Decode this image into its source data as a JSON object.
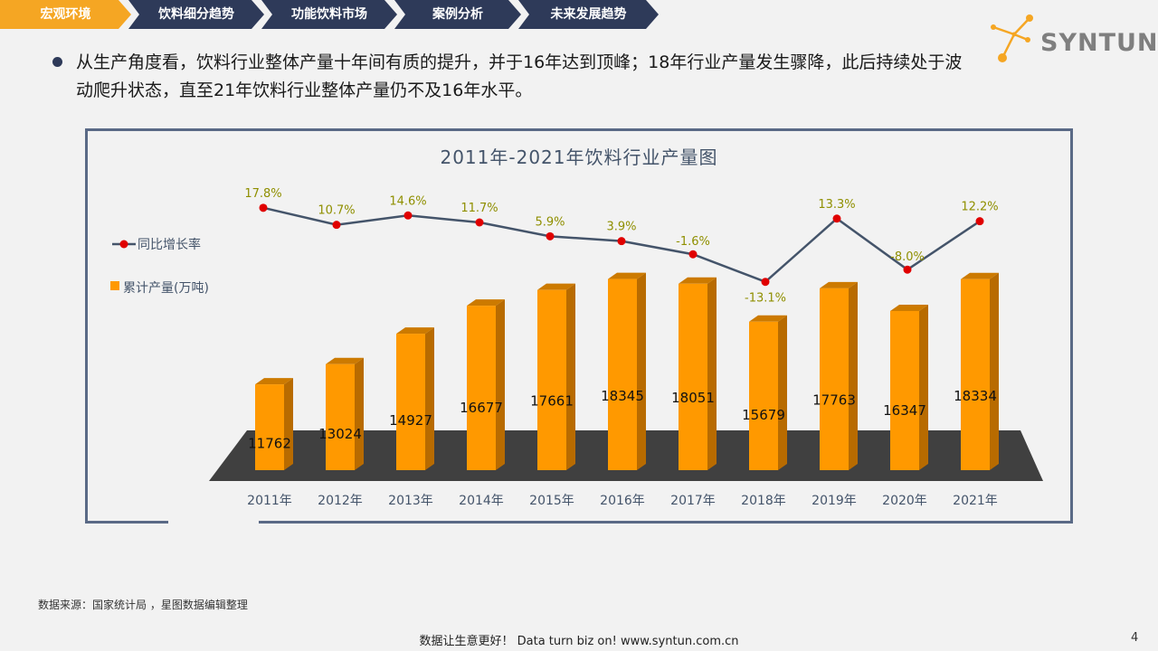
{
  "nav": {
    "items": [
      {
        "label": "宏观环境",
        "active": true
      },
      {
        "label": "饮料细分趋势",
        "active": false
      },
      {
        "label": "功能饮料市场",
        "active": false
      },
      {
        "label": "案例分析",
        "active": false
      },
      {
        "label": "未来发展趋势",
        "active": false
      }
    ],
    "active_color": "#f5a623",
    "inactive_color": "#2e3a59"
  },
  "logo": {
    "text": "SYNTUN",
    "icon": "molecule-logo-icon"
  },
  "paragraph": "从生产角度看，饮料行业整体产量十年间有质的提升，并于16年达到顶峰；18年行业产量发生骤降，此后持续处于波动爬升状态，直至21年饮料行业整体产量仍不及16年水平。",
  "chart_data": {
    "type": "bar",
    "title": "2011年-2021年饮料行业产量图",
    "categories": [
      "2011年",
      "2012年",
      "2013年",
      "2014年",
      "2015年",
      "2016年",
      "2017年",
      "2018年",
      "2019年",
      "2020年",
      "2021年"
    ],
    "series": [
      {
        "name": "累计产量(万吨)",
        "type": "bar",
        "values": [
          11762,
          13024,
          14927,
          16677,
          17661,
          18345,
          18051,
          15679,
          17763,
          16347,
          18334
        ],
        "color": "#ff9900"
      },
      {
        "name": "同比增长率",
        "type": "line",
        "values": [
          17.8,
          10.7,
          14.6,
          11.7,
          5.9,
          3.9,
          -1.6,
          -13.1,
          13.3,
          -8.0,
          12.2
        ],
        "labels": [
          "17.8%",
          "10.7%",
          "14.6%",
          "11.7%",
          "5.9%",
          "3.9%",
          "-1.6%",
          "-13.1%",
          "13.3%",
          "-8.0%",
          "12.2%"
        ],
        "color": "#44546a",
        "marker_color": "#e00000"
      }
    ],
    "legend_position": "left",
    "grid": false,
    "floor_color": "#404040"
  },
  "legend": {
    "line_label": "同比增长率",
    "bar_label": "累计产量(万吨)"
  },
  "source": "数据来源：国家统计局 ，星图数据编辑整理",
  "footer": "数据让生意更好！ Data turn biz on!  www.syntun.com.cn",
  "page_number": "4"
}
